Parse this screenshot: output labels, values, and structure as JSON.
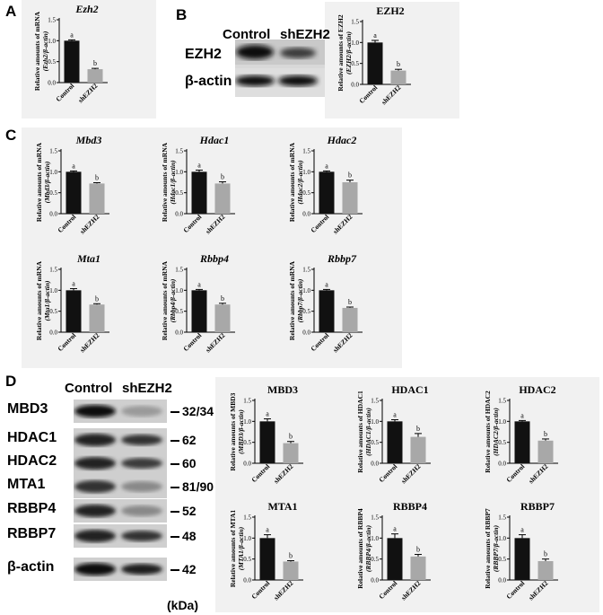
{
  "panel_labels": {
    "A": "A",
    "B": "B",
    "C": "C",
    "D": "D"
  },
  "blot_B": {
    "headers": [
      "Control",
      "shEZH2"
    ],
    "proteins": [
      "EZH2",
      "β-actin"
    ]
  },
  "blot_D": {
    "headers": [
      "Control",
      "shEZH2"
    ],
    "proteins": [
      "MBD3",
      "HDAC1",
      "HDAC2",
      "MTA1",
      "RBBP4",
      "RBBP7",
      "β-actin"
    ],
    "markers": [
      "32/34",
      "62",
      "60",
      "81/90",
      "52",
      "48",
      "42"
    ],
    "unit": "(kDa)"
  },
  "chart_data": [
    {
      "id": "A",
      "type": "bar",
      "title": "Ezh2",
      "italic": true,
      "ylabel": [
        "Relative amounts of mRNA",
        "(Ezh2/β-actin)"
      ],
      "categories": [
        "Control",
        "shEZH2"
      ],
      "values": [
        1.0,
        0.32
      ],
      "errors": [
        0.02,
        0.02
      ],
      "letters": [
        "a",
        "b"
      ],
      "ylim": [
        0,
        1.5
      ],
      "yticks": [
        "0.0",
        "0.5",
        "1.0",
        "1.5"
      ],
      "colors": [
        "#111111",
        "#a8a8a8"
      ]
    },
    {
      "id": "B",
      "type": "bar",
      "title": "EZH2",
      "italic": false,
      "ylabel": [
        "Relative amounts of EZH2",
        "(EZH2/β-actin)"
      ],
      "categories": [
        "Control",
        "shEZH2"
      ],
      "values": [
        1.0,
        0.33
      ],
      "errors": [
        0.05,
        0.03
      ],
      "letters": [
        "a",
        "b"
      ],
      "ylim": [
        0,
        1.5
      ],
      "yticks": [
        "0.0",
        "0.5",
        "1.0",
        "1.5"
      ],
      "colors": [
        "#111111",
        "#a8a8a8"
      ]
    },
    {
      "id": "C1",
      "type": "bar",
      "title": "Mbd3",
      "italic": true,
      "ylabel": [
        "Relative amounts of mRNA",
        "(Mbd3/β-actin)"
      ],
      "categories": [
        "Control",
        "shEZH2"
      ],
      "values": [
        1.0,
        0.72
      ],
      "errors": [
        0.02,
        0.02
      ],
      "letters": [
        "a",
        "b"
      ],
      "ylim": [
        0,
        1.5
      ],
      "yticks": [
        "0.0",
        "0.5",
        "1.0",
        "1.5"
      ],
      "colors": [
        "#111111",
        "#a8a8a8"
      ]
    },
    {
      "id": "C2",
      "type": "bar",
      "title": "Hdac1",
      "italic": true,
      "ylabel": [
        "Relative amounts of mRNA",
        "(Hdac1/β-actin)"
      ],
      "categories": [
        "Control",
        "shEZH2"
      ],
      "values": [
        1.0,
        0.72
      ],
      "errors": [
        0.04,
        0.04
      ],
      "letters": [
        "a",
        "b"
      ],
      "ylim": [
        0,
        1.5
      ],
      "yticks": [
        "0.0",
        "0.5",
        "1.0",
        "1.5"
      ],
      "colors": [
        "#111111",
        "#a8a8a8"
      ]
    },
    {
      "id": "C3",
      "type": "bar",
      "title": "Hdac2",
      "italic": true,
      "ylabel": [
        "Relative amounts of mRNA",
        "(Hdac2/β-actin)"
      ],
      "categories": [
        "Control",
        "shEZH2"
      ],
      "values": [
        1.0,
        0.75
      ],
      "errors": [
        0.02,
        0.05
      ],
      "letters": [
        "a",
        "b"
      ],
      "ylim": [
        0,
        1.5
      ],
      "yticks": [
        "0.0",
        "0.5",
        "1.0",
        "1.5"
      ],
      "colors": [
        "#111111",
        "#a8a8a8"
      ]
    },
    {
      "id": "C4",
      "type": "bar",
      "title": "Mta1",
      "italic": true,
      "ylabel": [
        "Relative amounts of mRNA",
        "(Mta1/β-actin)"
      ],
      "categories": [
        "Control",
        "shEZH2"
      ],
      "values": [
        1.0,
        0.66
      ],
      "errors": [
        0.04,
        0.02
      ],
      "letters": [
        "a",
        "b"
      ],
      "ylim": [
        0,
        1.5
      ],
      "yticks": [
        "0.0",
        "0.5",
        "1.0",
        "1.5"
      ],
      "colors": [
        "#111111",
        "#a8a8a8"
      ]
    },
    {
      "id": "C5",
      "type": "bar",
      "title": "Rbbp4",
      "italic": true,
      "ylabel": [
        "Relative amounts of mRNA",
        "(Rbbp4/β-actin)"
      ],
      "categories": [
        "Control",
        "shEZH2"
      ],
      "values": [
        1.0,
        0.66
      ],
      "errors": [
        0.02,
        0.03
      ],
      "letters": [
        "a",
        "b"
      ],
      "ylim": [
        0,
        1.5
      ],
      "yticks": [
        "0.0",
        "0.5",
        "1.0",
        "1.5"
      ],
      "colors": [
        "#111111",
        "#a8a8a8"
      ]
    },
    {
      "id": "C6",
      "type": "bar",
      "title": "Rbbp7",
      "italic": true,
      "ylabel": [
        "Relative amounts of mRNA",
        "(Rbbp7/β-actin)"
      ],
      "categories": [
        "Control",
        "shEZH2"
      ],
      "values": [
        1.0,
        0.58
      ],
      "errors": [
        0.02,
        0.02
      ],
      "letters": [
        "a",
        "b"
      ],
      "ylim": [
        0,
        1.5
      ],
      "yticks": [
        "0.0",
        "0.5",
        "1.0",
        "1.5"
      ],
      "colors": [
        "#111111",
        "#a8a8a8"
      ]
    },
    {
      "id": "D1",
      "type": "bar",
      "title": "MBD3",
      "italic": false,
      "ylabel": [
        "Relative amounts of MBD3",
        "(MBD3/β-actin)"
      ],
      "categories": [
        "Control",
        "shEZH2"
      ],
      "values": [
        1.0,
        0.48
      ],
      "errors": [
        0.06,
        0.04
      ],
      "letters": [
        "a",
        "b"
      ],
      "ylim": [
        0,
        1.5
      ],
      "yticks": [
        "0.0",
        "0.5",
        "1.0",
        "1.5"
      ],
      "colors": [
        "#111111",
        "#a8a8a8"
      ]
    },
    {
      "id": "D2",
      "type": "bar",
      "title": "HDAC1",
      "italic": false,
      "ylabel": [
        "Relative amounts of HDAC1",
        "(HDAC1/β-actin)"
      ],
      "categories": [
        "Control",
        "shEZH2"
      ],
      "values": [
        1.0,
        0.63
      ],
      "errors": [
        0.04,
        0.08
      ],
      "letters": [
        "a",
        "b"
      ],
      "ylim": [
        0,
        1.5
      ],
      "yticks": [
        "0.0",
        "0.5",
        "1.0",
        "1.5"
      ],
      "colors": [
        "#111111",
        "#a8a8a8"
      ]
    },
    {
      "id": "D3",
      "type": "bar",
      "title": "HDAC2",
      "italic": false,
      "ylabel": [
        "Relative amounts of HDAC2",
        "(HDAC2/β-actin)"
      ],
      "categories": [
        "Control",
        "shEZH2"
      ],
      "values": [
        1.0,
        0.54
      ],
      "errors": [
        0.02,
        0.04
      ],
      "letters": [
        "a",
        "b"
      ],
      "ylim": [
        0,
        1.5
      ],
      "yticks": [
        "0.0",
        "0.5",
        "1.0",
        "1.5"
      ],
      "colors": [
        "#111111",
        "#a8a8a8"
      ]
    },
    {
      "id": "D4",
      "type": "bar",
      "title": "MTA1",
      "italic": false,
      "ylabel": [
        "Relative amounts of MTA1",
        "(MTA1/β-actin)"
      ],
      "categories": [
        "Control",
        "shEZH2"
      ],
      "values": [
        1.0,
        0.44
      ],
      "errors": [
        0.08,
        0.02
      ],
      "letters": [
        "a",
        "b"
      ],
      "ylim": [
        0,
        1.5
      ],
      "yticks": [
        "0.0",
        "0.5",
        "1.0",
        "1.5"
      ],
      "colors": [
        "#111111",
        "#a8a8a8"
      ]
    },
    {
      "id": "D5",
      "type": "bar",
      "title": "RBBP4",
      "italic": false,
      "ylabel": [
        "Relative amounts of RBBP4",
        "(RBBP4/β-actin)"
      ],
      "categories": [
        "Control",
        "shEZH2"
      ],
      "values": [
        1.0,
        0.56
      ],
      "errors": [
        0.1,
        0.05
      ],
      "letters": [
        "a",
        "b"
      ],
      "ylim": [
        0,
        1.5
      ],
      "yticks": [
        "0.0",
        "0.5",
        "1.0",
        "1.5"
      ],
      "colors": [
        "#111111",
        "#a8a8a8"
      ]
    },
    {
      "id": "D6",
      "type": "bar",
      "title": "RBBP7",
      "italic": false,
      "ylabel": [
        "Relative amounts of RBBP7",
        "(RBBP7/β-actin)"
      ],
      "categories": [
        "Control",
        "shEZH2"
      ],
      "values": [
        1.0,
        0.45
      ],
      "errors": [
        0.08,
        0.05
      ],
      "letters": [
        "a",
        "b"
      ],
      "ylim": [
        0,
        1.5
      ],
      "yticks": [
        "0.0",
        "0.5",
        "1.0",
        "1.5"
      ],
      "colors": [
        "#111111",
        "#a8a8a8"
      ]
    }
  ]
}
